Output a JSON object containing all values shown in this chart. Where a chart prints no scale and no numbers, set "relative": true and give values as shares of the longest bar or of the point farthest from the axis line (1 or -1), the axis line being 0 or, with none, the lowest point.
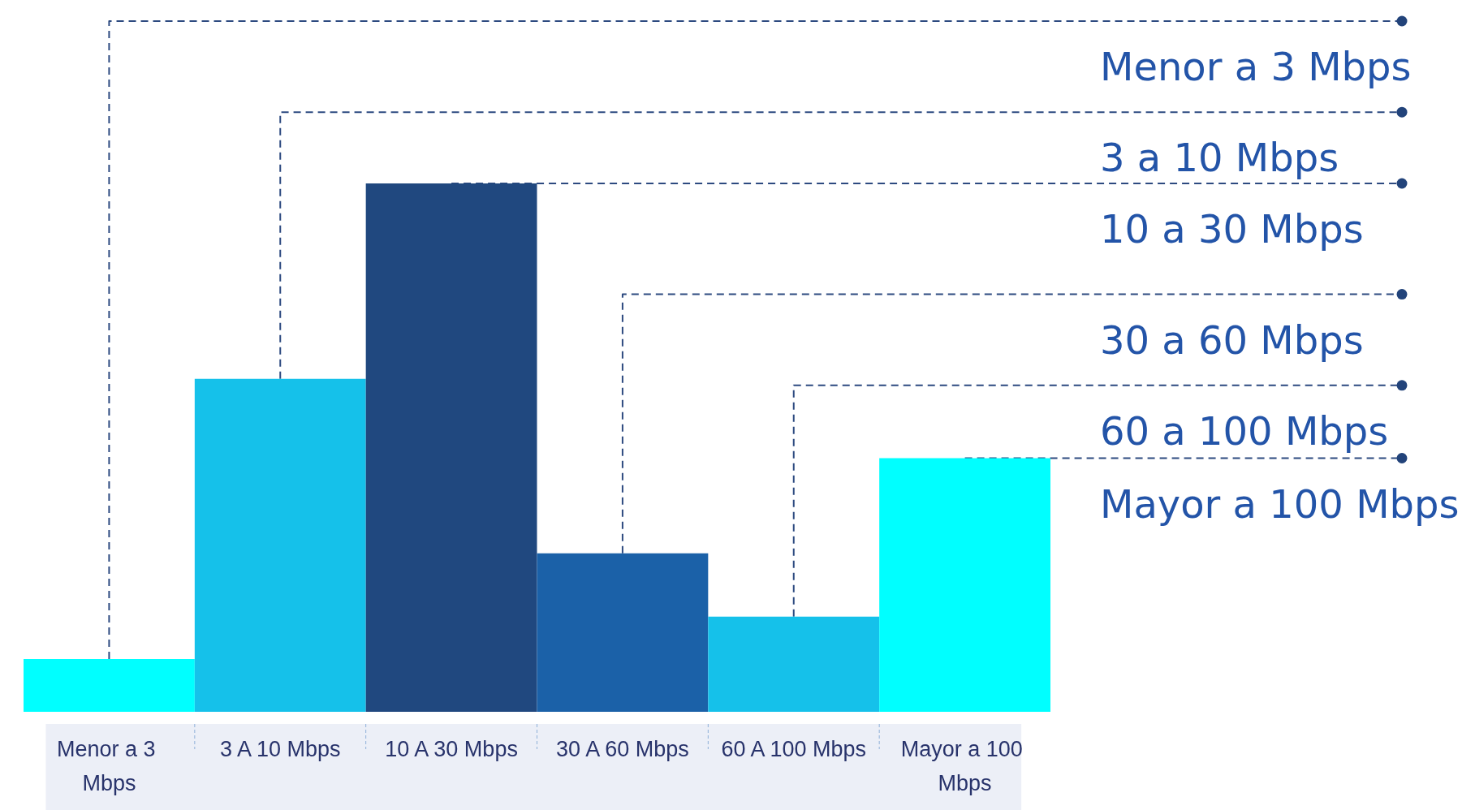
{
  "chart_data": {
    "type": "bar",
    "relative": true,
    "categories": [
      "Menor a 3 Mbps",
      "3 A 10 Mbps",
      "10 A 30 Mbps",
      "30 A 60 Mbps",
      "60 A 100 Mbps",
      "Mayor a 100 Mbps"
    ],
    "values": [
      0.1,
      0.63,
      1,
      0.3,
      0.18,
      0.48
    ],
    "colors": [
      "#00ffff",
      "#15c1ea",
      "#20487f",
      "#1b61a8",
      "#15c1ea",
      "#00ffff"
    ],
    "annotations": [
      {
        "text": "Menor a 3 Mbps",
        "x": "Menor a 3 Mbps",
        "y": 0.1
      },
      {
        "text": "3 a 10 Mbps",
        "x": "3 A 10 Mbps",
        "y": 0.63
      },
      {
        "text": "10 a 30 Mbps",
        "x": "10 A 30 Mbps",
        "y": 1
      },
      {
        "text": "30 a 60 Mbps",
        "x": "30 A 60 Mbps",
        "y": 0.3
      },
      {
        "text": "60 a 100 Mbps",
        "x": "60 A 100 Mbps",
        "y": 0.18
      },
      {
        "text": "Mayor a 100 Mbps",
        "x": "Mayor a 100 Mbps",
        "y": 0.48
      }
    ]
  }
}
